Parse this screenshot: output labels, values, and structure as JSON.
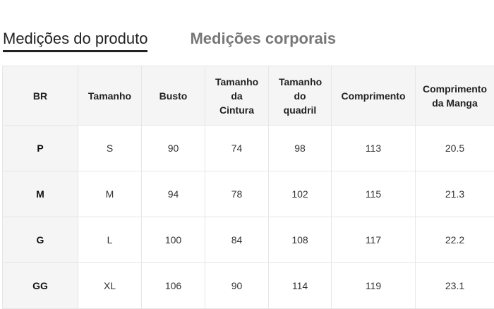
{
  "tabs": [
    {
      "label": "Medições do produto",
      "active": true
    },
    {
      "label": "Medições corporais",
      "active": false
    }
  ],
  "table": {
    "headers": [
      "BR",
      "Tamanho",
      "Busto",
      "Tamanho da Cintura",
      "Tamanho do quadril",
      "Comprimento",
      "Comprimento da Manga"
    ],
    "rows": [
      [
        "P",
        "S",
        "90",
        "74",
        "98",
        "113",
        "20.5"
      ],
      [
        "M",
        "M",
        "94",
        "78",
        "102",
        "115",
        "21.3"
      ],
      [
        "G",
        "L",
        "100",
        "84",
        "108",
        "117",
        "22.2"
      ],
      [
        "GG",
        "XL",
        "106",
        "90",
        "114",
        "119",
        "23.1"
      ]
    ]
  }
}
